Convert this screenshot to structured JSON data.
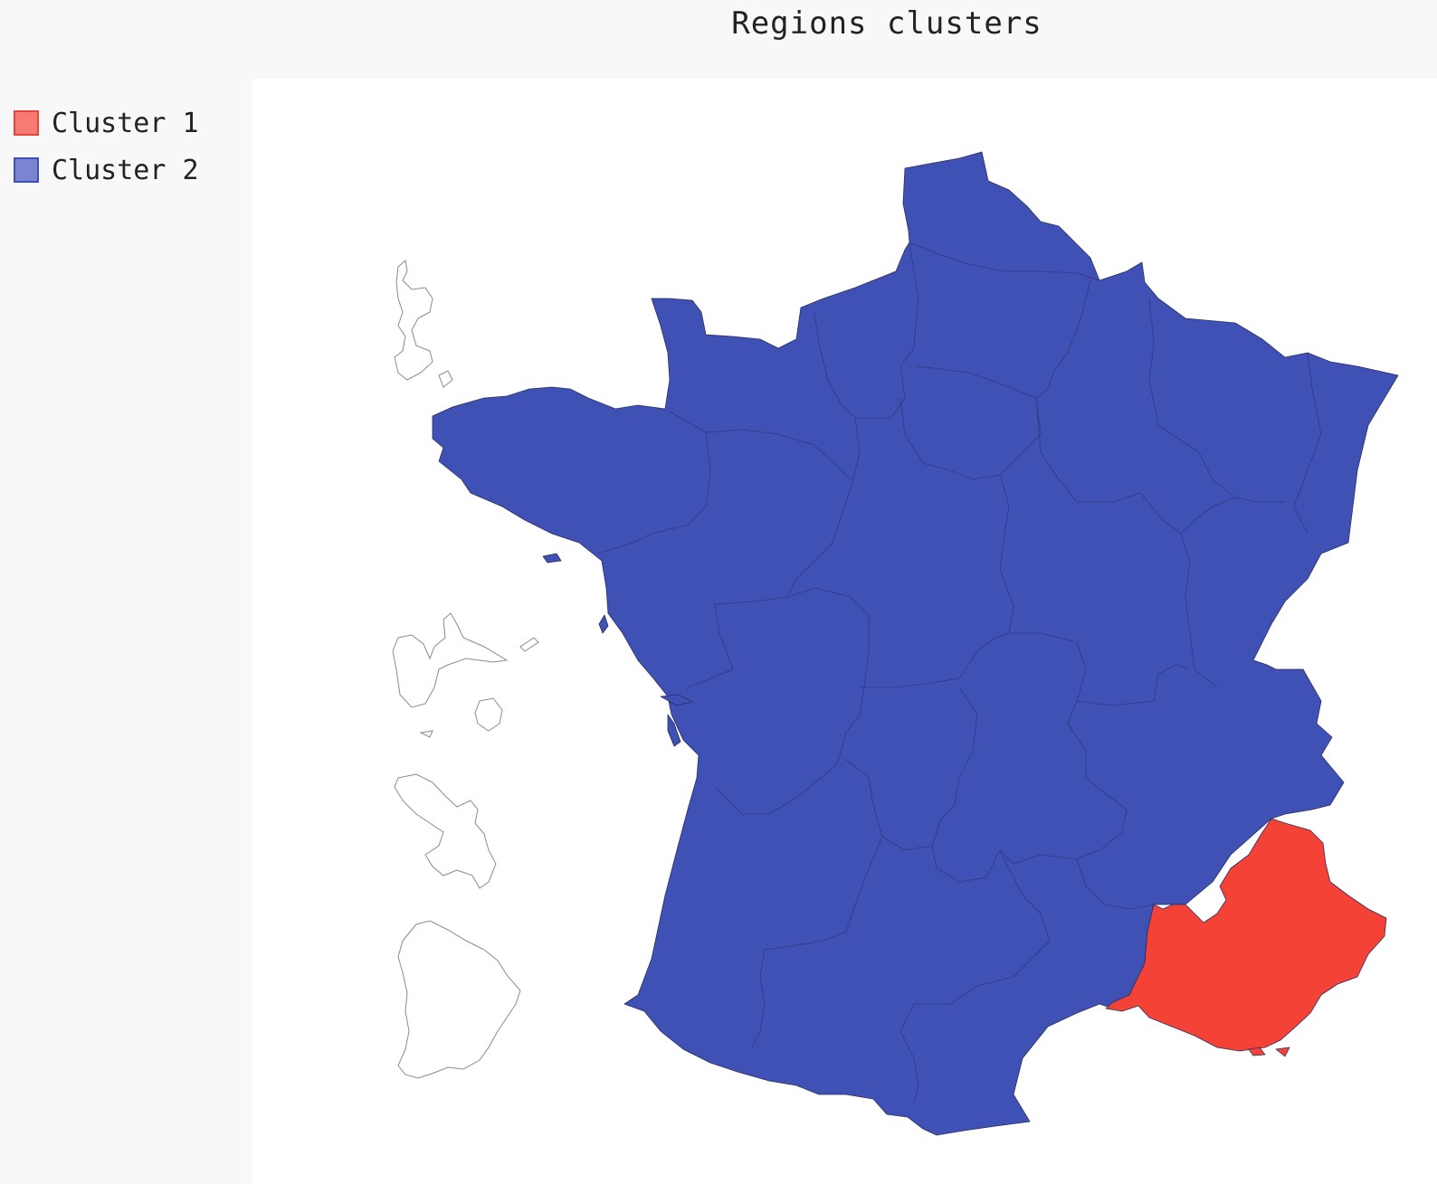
{
  "title": "Regions clusters",
  "legend": [
    {
      "label": "Cluster 1",
      "fill": "#f77b72",
      "stroke": "#e8453a"
    },
    {
      "label": "Cluster 2",
      "fill": "#7b84cf",
      "stroke": "#3f51b5"
    }
  ],
  "colors": {
    "cluster1": "#f44336",
    "cluster2": "#3f51b5",
    "background": "#f8f8f8",
    "plot_background": "#ffffff",
    "overseas_outline": "#8a8a8a"
  },
  "map": {
    "country": "France",
    "regions": [
      {
        "name": "Hauts-de-France",
        "cluster": 2
      },
      {
        "name": "Normandie",
        "cluster": 2
      },
      {
        "name": "Île-de-France",
        "cluster": 2
      },
      {
        "name": "Grand Est",
        "cluster": 2
      },
      {
        "name": "Bretagne",
        "cluster": 2
      },
      {
        "name": "Pays de la Loire",
        "cluster": 2
      },
      {
        "name": "Centre-Val de Loire",
        "cluster": 2
      },
      {
        "name": "Bourgogne-Franche-Comté",
        "cluster": 2
      },
      {
        "name": "Nouvelle-Aquitaine",
        "cluster": 2
      },
      {
        "name": "Auvergne-Rhône-Alpes",
        "cluster": 2
      },
      {
        "name": "Occitanie",
        "cluster": 2
      },
      {
        "name": "Provence-Alpes-Côte d'Azur",
        "cluster": 1
      },
      {
        "name": "Guadeloupe",
        "cluster": null
      },
      {
        "name": "Martinique",
        "cluster": null
      },
      {
        "name": "Guyane",
        "cluster": null
      },
      {
        "name": "La Réunion",
        "cluster": null
      },
      {
        "name": "Mayotte",
        "cluster": null
      }
    ]
  }
}
